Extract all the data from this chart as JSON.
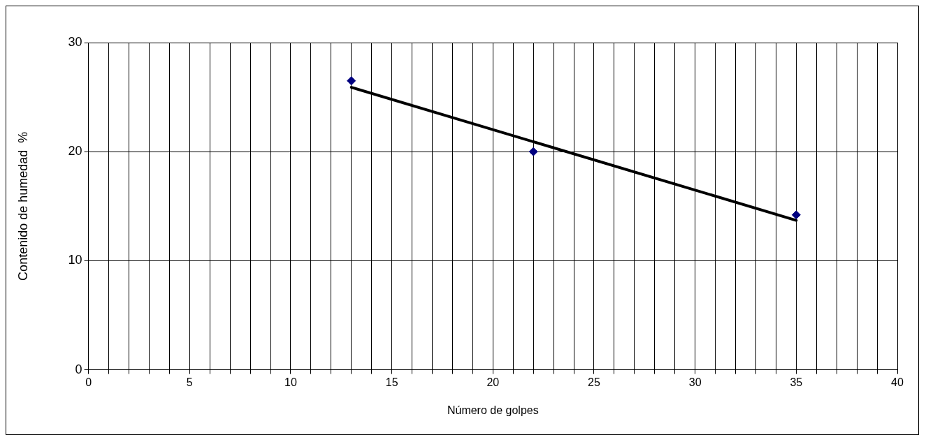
{
  "chart_data": {
    "type": "scatter",
    "xlabel": "Número de golpes",
    "ylabel": "Contenido de humedad  %",
    "xlim": [
      0,
      40
    ],
    "xticks": [
      0,
      {
        "value": 1,
        "label": null
      },
      {
        "value": 2,
        "label": null
      },
      {
        "value": 3,
        "label": null
      },
      {
        "value": 4,
        "label": null
      },
      5,
      {
        "value": 6,
        "label": null
      },
      {
        "value": 7,
        "label": null
      },
      {
        "value": 8,
        "label": null
      },
      {
        "value": 9,
        "label": null
      },
      10,
      {
        "value": 11,
        "label": null
      },
      {
        "value": 12,
        "label": null
      },
      {
        "value": 13,
        "label": null
      },
      {
        "value": 14,
        "label": null
      },
      15,
      {
        "value": 16,
        "label": null
      },
      {
        "value": 17,
        "label": null
      },
      {
        "value": 18,
        "label": null
      },
      {
        "value": 19,
        "label": null
      },
      20,
      {
        "value": 21,
        "label": null
      },
      {
        "value": 22,
        "label": null
      },
      {
        "value": 23,
        "label": null
      },
      {
        "value": 24,
        "label": null
      },
      25,
      {
        "value": 26,
        "label": null
      },
      {
        "value": 27,
        "label": null
      },
      {
        "value": 28,
        "label": null
      },
      {
        "value": 29,
        "label": null
      },
      30,
      {
        "value": 31,
        "label": null
      },
      {
        "value": 32,
        "label": null
      },
      {
        "value": 33,
        "label": null
      },
      {
        "value": 34,
        "label": null
      },
      35,
      {
        "value": 36,
        "label": null
      },
      {
        "value": 37,
        "label": null
      },
      {
        "value": 38,
        "label": null
      },
      {
        "value": 39,
        "label": null
      },
      40
    ],
    "ylim": [
      0,
      30
    ],
    "yticks": [
      0,
      10,
      20,
      30
    ],
    "grid": true,
    "legend": false,
    "series": [
      {
        "type": "scatter",
        "color": "#000080",
        "marker": "diamond",
        "x": [
          13,
          22,
          35
        ],
        "values": [
          26.5,
          20,
          14.2
        ]
      },
      {
        "type": "line",
        "color": "#000000",
        "marker": "none",
        "line_style": "solid",
        "x": [
          13,
          35
        ],
        "values": [
          25.9,
          13.7
        ]
      }
    ]
  }
}
